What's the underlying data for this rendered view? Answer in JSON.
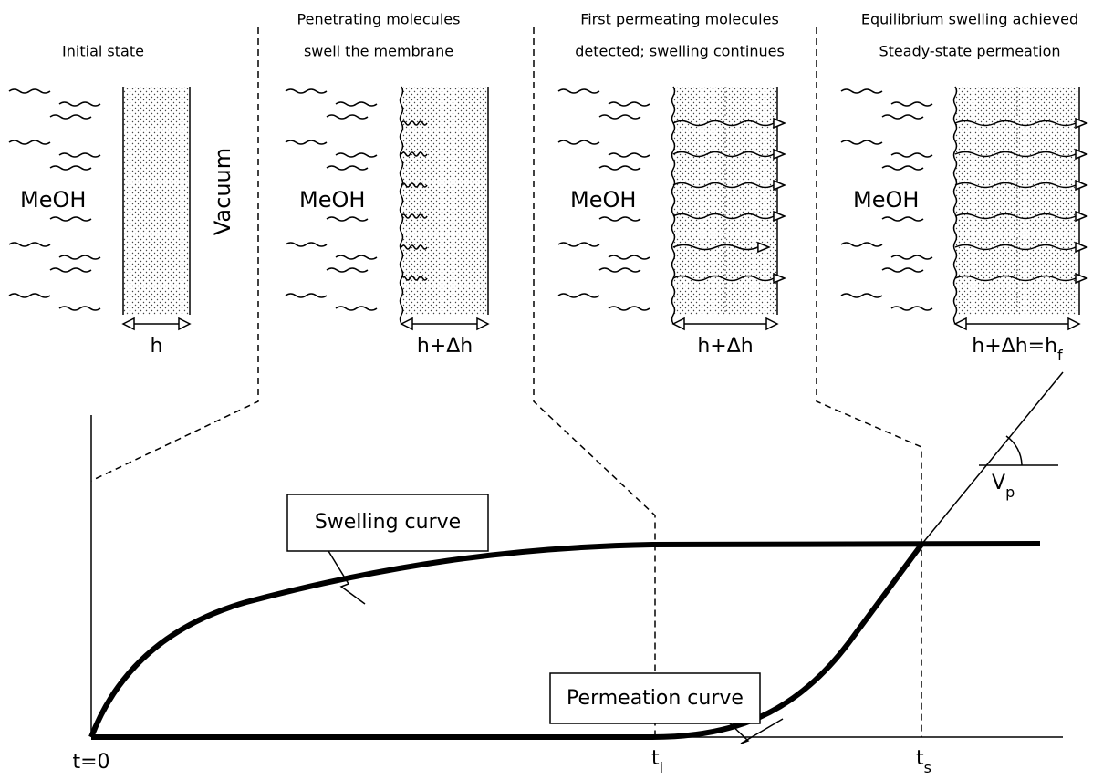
{
  "panels": [
    {
      "title": [
        "Initial state"
      ],
      "solvent": "MeOH",
      "thickness": {
        "main": "h"
      }
    },
    {
      "title": [
        "Penetrating molecules",
        "swell the membrane"
      ],
      "solvent": "MeOH",
      "thickness": {
        "main": "h+Δh"
      }
    },
    {
      "title": [
        "First permeating molecules",
        "detected; swelling continues"
      ],
      "solvent": "MeOH",
      "thickness": {
        "main": "h+Δh"
      }
    },
    {
      "title": [
        "Equilibrium swelling achieved",
        "Steady-state permeation"
      ],
      "solvent": "MeOH",
      "thickness": {
        "main": "h+Δh=h",
        "sub": "f"
      }
    }
  ],
  "vacuum": "Vacuum",
  "curves": {
    "swelling": "Swelling curve",
    "permeation": "Permeation curve"
  },
  "axis": {
    "t0": "t=0",
    "ti": {
      "main": "t",
      "sub": "i"
    },
    "ts": {
      "main": "t",
      "sub": "s"
    },
    "vp": {
      "main": "V",
      "sub": "p"
    }
  }
}
